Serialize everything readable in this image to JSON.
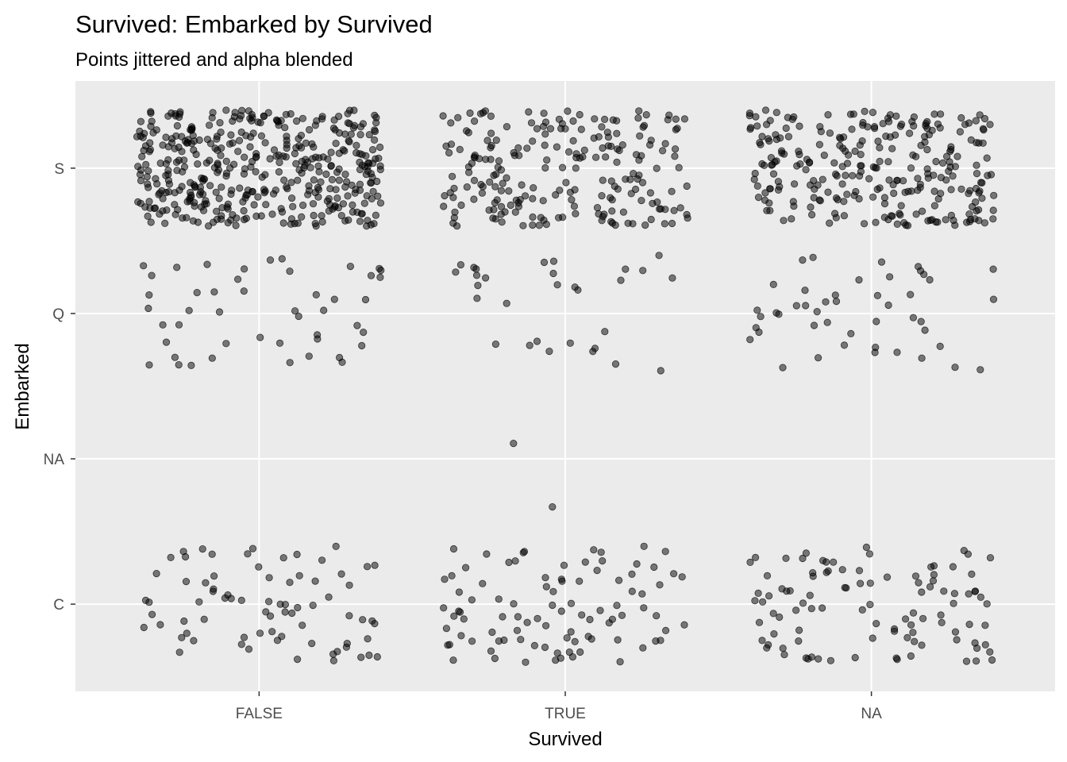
{
  "chart_data": {
    "type": "scatter",
    "title": "Survived: Embarked by Survived",
    "subtitle": "Points jittered and alpha blended",
    "xlabel": "Survived",
    "ylabel": "Embarked",
    "x_categories": [
      "FALSE",
      "TRUE",
      "NA"
    ],
    "y_categories": [
      "C",
      "NA",
      "Q",
      "S"
    ],
    "jitter": {
      "width": 0.4,
      "height": 0.4
    },
    "point_alpha": 0.5,
    "point_color": "#000000",
    "panel_background": "#ebebeb",
    "grid": true,
    "legend": "none",
    "counts": [
      {
        "x": "FALSE",
        "y": "S",
        "n": 427
      },
      {
        "x": "FALSE",
        "y": "Q",
        "n": 47
      },
      {
        "x": "FALSE",
        "y": "C",
        "n": 75
      },
      {
        "x": "TRUE",
        "y": "S",
        "n": 217
      },
      {
        "x": "TRUE",
        "y": "Q",
        "n": 30
      },
      {
        "x": "TRUE",
        "y": "C",
        "n": 93
      },
      {
        "x": "TRUE",
        "y": "NA",
        "n": 2
      },
      {
        "x": "NA",
        "y": "S",
        "n": 270
      },
      {
        "x": "NA",
        "y": "Q",
        "n": 46
      },
      {
        "x": "NA",
        "y": "C",
        "n": 102
      }
    ]
  }
}
